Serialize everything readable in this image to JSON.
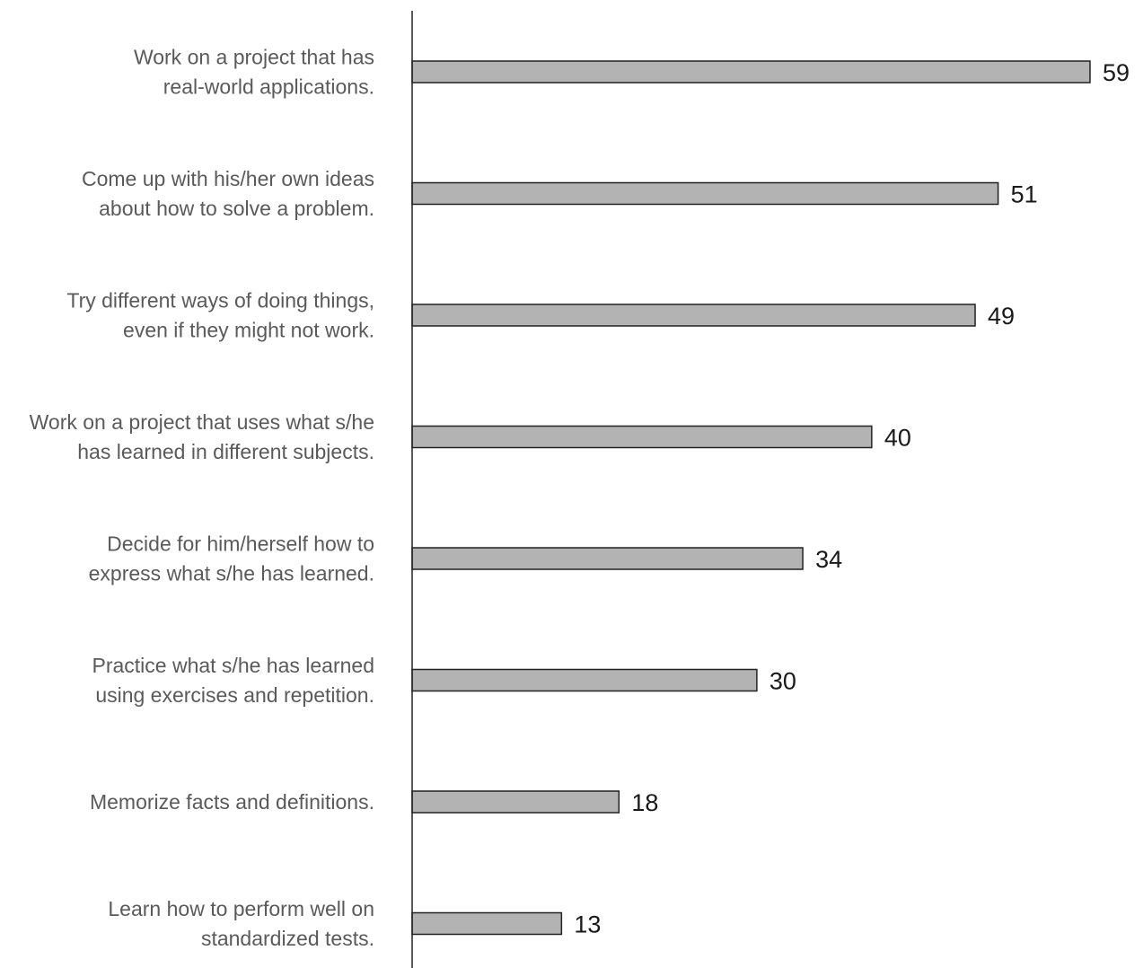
{
  "chart_data": {
    "type": "bar",
    "orientation": "horizontal",
    "categories": [
      [
        "Work on a project that has",
        "real-world applications."
      ],
      [
        "Come up with his/her own ideas",
        "about how to solve a problem."
      ],
      [
        "Try different ways of doing things,",
        "even if they might not work."
      ],
      [
        "Work on a project that uses what s/he",
        "has learned in different subjects."
      ],
      [
        "Decide for him/herself how to",
        "express what s/he has learned."
      ],
      [
        "Practice what s/he has learned",
        "using exercises and repetition."
      ],
      [
        "Memorize facts and definitions."
      ],
      [
        "Learn how to perform well on",
        "standardized tests."
      ]
    ],
    "values": [
      59,
      51,
      49,
      40,
      34,
      30,
      18,
      13
    ],
    "data_labels": [
      "59",
      "51",
      "49",
      "40",
      "34",
      "30",
      "18",
      "13"
    ],
    "xlim": [
      0,
      59
    ],
    "grid": false,
    "legend": "none",
    "colors": {
      "bar_fill": "#b3b3b3",
      "bar_stroke": "#222222",
      "axis": "#222222"
    }
  }
}
